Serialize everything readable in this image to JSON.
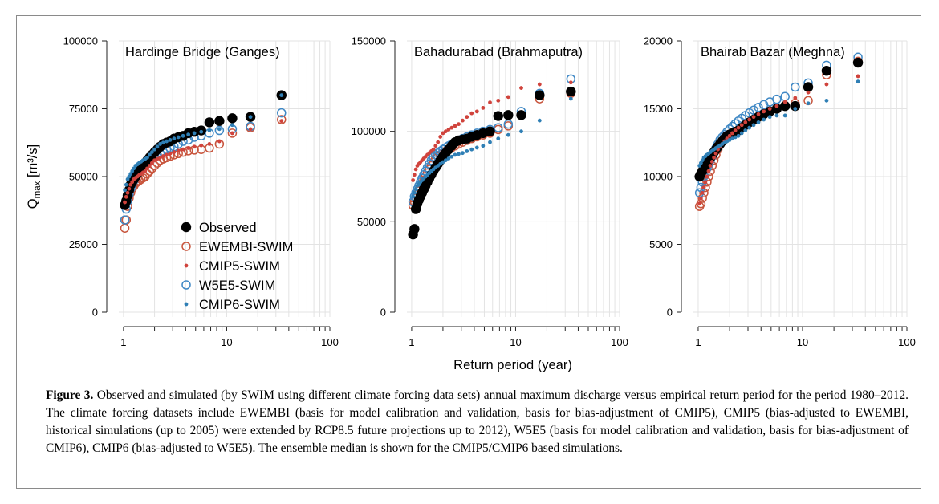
{
  "chart_data": [
    {
      "type": "scatter",
      "title": "Hardinge Bridge (Ganges)",
      "ylabel": "Q_max [m³/s]",
      "x_scale": "log",
      "xlim": [
        0.9,
        100
      ],
      "ylim": [
        0,
        100000
      ],
      "yticks": [
        "0",
        "25000",
        "50000",
        "75000",
        "100000"
      ],
      "xticks": [
        "1",
        "10",
        "100"
      ],
      "y_sorted_descending": {
        "Observed": [
          80000,
          72000,
          71500,
          70500,
          70000,
          67000,
          66500,
          66000,
          65000,
          64500,
          64000,
          63000,
          62500,
          62000,
          61000,
          60000,
          59000,
          58000,
          57000,
          56000,
          55000,
          54000,
          53000,
          52000,
          51000,
          50000,
          49000,
          48000,
          47000,
          45000,
          43000,
          41000,
          39500
        ],
        "EWEMBI-SWIM": [
          71000,
          68000,
          66000,
          62000,
          60500,
          60000,
          59800,
          59500,
          59000,
          58500,
          58000,
          57500,
          57000,
          56500,
          56000,
          55000,
          54000,
          53000,
          52000,
          51000,
          50000,
          49500,
          49000,
          48500,
          48000,
          47500,
          46500,
          45500,
          44000,
          42000,
          39000,
          34000,
          31000
        ],
        "CMIP5-SWIM": [
          70500,
          67500,
          66000,
          63000,
          62000,
          61500,
          61000,
          60500,
          60000,
          59500,
          59000,
          58500,
          58000,
          57500,
          57000,
          56500,
          56000,
          55000,
          54000,
          53000,
          52000,
          51500,
          51000,
          50500,
          50000,
          49500,
          49000,
          48000,
          47000,
          45500,
          44000,
          42500,
          40500
        ],
        "W5E5-SWIM": [
          73500,
          68500,
          67500,
          67000,
          66000,
          65000,
          64500,
          63500,
          63000,
          62000,
          61000,
          60500,
          60000,
          59000,
          58500,
          58000,
          57500,
          57000,
          56500,
          56000,
          55000,
          54500,
          54000,
          52500,
          51500,
          50000,
          48500,
          47000,
          45500,
          43500,
          41000,
          38000,
          34000
        ],
        "CMIP6-SWIM": [
          80000,
          72000,
          69000,
          67500,
          67000,
          66500,
          66000,
          65500,
          65000,
          64500,
          64000,
          63500,
          63000,
          62500,
          62000,
          61000,
          60000,
          59000,
          58000,
          57000,
          56500,
          56000,
          55500,
          55000,
          54500,
          54000,
          53000,
          52000,
          51000,
          50000,
          49000,
          47000,
          45000
        ]
      }
    },
    {
      "type": "scatter",
      "title": "Bahadurabad (Brahmaputra)",
      "x_scale": "log",
      "xlim": [
        0.9,
        100
      ],
      "ylim": [
        0,
        150000
      ],
      "yticks": [
        "0",
        "50000",
        "100000",
        "150000"
      ],
      "xticks": [
        "1",
        "10",
        "100"
      ],
      "y_sorted_descending": {
        "Observed": [
          122000,
          120000,
          109000,
          109000,
          108500,
          100000,
          99000,
          98000,
          97000,
          96000,
          95500,
          95000,
          94000,
          92000,
          90000,
          88000,
          86000,
          84000,
          82000,
          80000,
          78000,
          76000,
          74000,
          72000,
          70000,
          68000,
          66000,
          64000,
          62000,
          60000,
          57000,
          46000,
          43000
        ],
        "EWEMBI-SWIM": [
          121000,
          118000,
          109000,
          103000,
          101000,
          99000,
          98000,
          97000,
          96000,
          95000,
          94000,
          93000,
          92000,
          91000,
          90000,
          89000,
          88000,
          87000,
          86000,
          85000,
          83000,
          81000,
          79000,
          77000,
          75000,
          73000,
          71000,
          69000,
          67000,
          65000,
          63000,
          61000,
          59000
        ],
        "CMIP5-SWIM": [
          127000,
          126000,
          124000,
          119000,
          117000,
          116000,
          113000,
          111000,
          110000,
          108000,
          106000,
          104000,
          103000,
          102000,
          101000,
          100000,
          99000,
          97000,
          94000,
          92000,
          90000,
          89000,
          88000,
          87000,
          86000,
          85000,
          84000,
          83000,
          82000,
          81000,
          79000,
          76000,
          73000
        ],
        "W5E5-SWIM": [
          129000,
          121000,
          111000,
          104000,
          102000,
          101000,
          100000,
          99000,
          98000,
          97000,
          96000,
          95000,
          94000,
          93000,
          92000,
          91000,
          90000,
          89000,
          88000,
          87000,
          86000,
          84000,
          82000,
          80000,
          78000,
          76000,
          74000,
          72000,
          70000,
          68000,
          66000,
          64000,
          61000
        ],
        "CMIP6-SWIM": [
          118000,
          106000,
          100000,
          98000,
          96000,
          94000,
          92000,
          91000,
          90000,
          89000,
          88000,
          87500,
          87000,
          86000,
          85000,
          84000,
          83000,
          82000,
          81000,
          80000,
          79000,
          78000,
          77000,
          76000,
          75000,
          74000,
          73000,
          72000,
          71000,
          70000,
          68000,
          66000,
          64000
        ]
      }
    },
    {
      "type": "scatter",
      "title": "Bhairab Bazar (Meghna)",
      "x_scale": "log",
      "xlim": [
        0.9,
        100
      ],
      "ylim": [
        0,
        20000
      ],
      "yticks": [
        "0",
        "5000",
        "10000",
        "15000",
        "20000"
      ],
      "xticks": [
        "1",
        "10",
        "100"
      ],
      "y_sorted_descending": {
        "Observed": [
          18400,
          17800,
          16600,
          15200,
          15200,
          15000,
          14800,
          14600,
          14400,
          14200,
          14000,
          13800,
          13600,
          13400,
          13300,
          13200,
          13100,
          13000,
          12800,
          12600,
          12400,
          12200,
          12000,
          11800,
          11600,
          11400,
          11200,
          11000,
          10800,
          10600,
          10400,
          10200,
          10000
        ],
        "EWEMBI-SWIM": [
          18500,
          17500,
          15600,
          15400,
          15200,
          15000,
          14800,
          14600,
          14400,
          14200,
          14000,
          13800,
          13600,
          13400,
          13300,
          13200,
          13100,
          13000,
          12800,
          12600,
          12400,
          12000,
          11600,
          11200,
          10800,
          10400,
          10000,
          9600,
          9200,
          8800,
          8400,
          8000,
          7800
        ],
        "CMIP5-SWIM": [
          17400,
          16800,
          16200,
          15800,
          15500,
          15200,
          15000,
          14800,
          14600,
          14400,
          14200,
          14000,
          13800,
          13600,
          13400,
          13200,
          13000,
          12800,
          12600,
          12400,
          12200,
          12000,
          11700,
          11400,
          11100,
          10800,
          10400,
          10000,
          9600,
          9200,
          8800,
          8400,
          8000
        ],
        "W5E5-SWIM": [
          18800,
          18200,
          16900,
          16600,
          15900,
          15700,
          15500,
          15300,
          15100,
          14900,
          14700,
          14500,
          14300,
          14100,
          13900,
          13700,
          13500,
          13300,
          13100,
          12900,
          12700,
          12400,
          12100,
          11800,
          11500,
          11200,
          10900,
          10600,
          10300,
          10000,
          9600,
          9200,
          8800
        ],
        "CMIP6-SWIM": [
          17000,
          15600,
          15400,
          15000,
          14500,
          14500,
          14400,
          14200,
          14000,
          13800,
          13600,
          13400,
          13200,
          13000,
          12900,
          12800,
          12700,
          12600,
          12500,
          12400,
          12300,
          12200,
          12100,
          12000,
          11900,
          11800,
          11700,
          11600,
          11500,
          11400,
          11200,
          11000,
          10800
        ]
      }
    }
  ],
  "series_styles": [
    {
      "name": "Observed",
      "marker": "filled-circle",
      "color": "#000000"
    },
    {
      "name": "EWEMBI-SWIM",
      "marker": "open-circle",
      "color": "#c8553d"
    },
    {
      "name": "CMIP5-SWIM",
      "marker": "small-dot",
      "color": "#d0433c"
    },
    {
      "name": "W5E5-SWIM",
      "marker": "open-circle",
      "color": "#3f88c5"
    },
    {
      "name": "CMIP6-SWIM",
      "marker": "small-dot",
      "color": "#2f7fb5"
    }
  ],
  "legend_location": "panel-1 lower-right",
  "shared_xlabel": "Return period (year)",
  "caption": {
    "label": "Figure 3.",
    "text": " Observed and simulated (by SWIM using different climate forcing data sets) annual maximum discharge versus empirical return period for the period 1980–2012. The climate forcing datasets include EWEMBI (basis for model calibration and validation, basis for bias-adjustment of CMIP5), CMIP5 (bias-adjusted to EWEMBI, historical simulations (up to 2005) were extended by RCP8.5 future projections up to 2012), W5E5 (basis for model calibration and validation, basis for bias-adjustment of CMIP6), CMIP6 (bias-adjusted to W5E5). The ensemble median is shown for the CMIP5/CMIP6 based simulations."
  }
}
